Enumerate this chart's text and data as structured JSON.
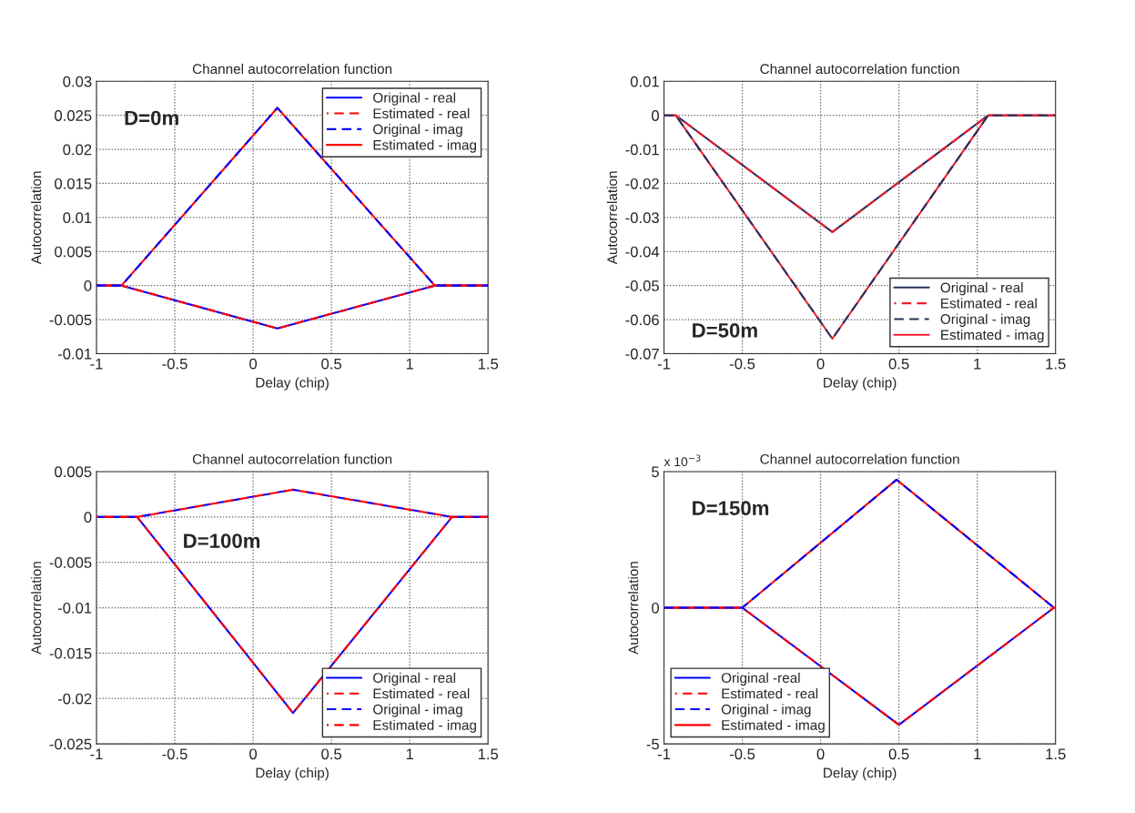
{
  "chart_data": [
    {
      "type": "line",
      "title": "Channel autocorrelation function",
      "xlabel": "Delay (chip)",
      "ylabel": "Autocorrelation",
      "annotations": [
        "D=0m"
      ],
      "xlim": [
        -1,
        1.5
      ],
      "xticks": [
        -1,
        -0.5,
        0,
        0.5,
        1,
        1.5
      ],
      "ylim": [
        -0.01,
        0.03
      ],
      "yticks": [
        -0.01,
        -0.005,
        0,
        0.005,
        0.01,
        0.015,
        0.02,
        0.025,
        0.03
      ],
      "grid": true,
      "legend": "top right",
      "series": [
        {
          "name": "Original - real",
          "color": "#0000ff",
          "line_style": "solid",
          "x": [
            -1,
            -0.84,
            0.155,
            1.16,
            1.5
          ],
          "values": [
            0,
            0,
            -0.0063,
            0,
            0
          ]
        },
        {
          "name": "Estimated - real",
          "color": "#ff0000",
          "line_style": "dashed",
          "x": [
            -1,
            -0.84,
            0.155,
            1.16,
            1.5
          ],
          "values": [
            0,
            0,
            -0.0063,
            0,
            0
          ]
        },
        {
          "name": "Original - imag",
          "color": "#0000ff",
          "line_style": "dashed",
          "x": [
            -1,
            -0.84,
            0.155,
            1.16,
            1.5
          ],
          "values": [
            0,
            0,
            0.0261,
            0,
            0
          ]
        },
        {
          "name": "Estimated - imag",
          "color": "#ff0000",
          "line_style": "solid",
          "x": [
            -1,
            -0.84,
            0.155,
            1.16,
            1.5
          ],
          "values": [
            0,
            0,
            0.0261,
            0,
            0
          ]
        }
      ]
    },
    {
      "type": "line",
      "title": "Channel autocorrelation function",
      "xlabel": "Delay (chip)",
      "ylabel": "Autocorrelation",
      "annotations": [
        "D=50m"
      ],
      "xlim": [
        -1,
        1.5
      ],
      "xticks": [
        -1,
        -0.5,
        0,
        0.5,
        1,
        1.5
      ],
      "ylim": [
        -0.07,
        0.01
      ],
      "yticks": [
        -0.07,
        -0.06,
        -0.05,
        -0.04,
        -0.03,
        -0.02,
        -0.01,
        0,
        0.01
      ],
      "grid": true,
      "legend": "bottom right",
      "series": [
        {
          "name": "Original - real",
          "color": "#27325e",
          "line_style": "solid",
          "x": [
            -1,
            -0.925,
            0.075,
            1.07,
            1.5
          ],
          "values": [
            0,
            0,
            -0.0343,
            0,
            0
          ]
        },
        {
          "name": "Estimated - real",
          "color": "#ee1c2e",
          "line_style": "dashed",
          "x": [
            -1,
            -0.925,
            0.075,
            1.07,
            1.5
          ],
          "values": [
            0,
            0,
            -0.0343,
            0,
            0
          ]
        },
        {
          "name": "Original - imag",
          "color": "#27325e",
          "line_style": "dashed",
          "x": [
            -1,
            -0.925,
            0.075,
            1.07,
            1.5
          ],
          "values": [
            0,
            0,
            -0.0656,
            0,
            0
          ]
        },
        {
          "name": "Estimated - imag",
          "color": "#ee1c2e",
          "line_style": "solid",
          "x": [
            -1,
            -0.925,
            0.075,
            1.07,
            1.5
          ],
          "values": [
            0,
            0,
            -0.0656,
            0,
            0
          ]
        }
      ]
    },
    {
      "type": "line",
      "title": "Channel autocorrelation function",
      "xlabel": "Delay (chip)",
      "ylabel": "Autocorrelation",
      "annotations": [
        "D=100m"
      ],
      "xlim": [
        -1,
        1.5
      ],
      "xticks": [
        -1,
        -0.5,
        0,
        0.5,
        1,
        1.5
      ],
      "ylim": [
        -0.025,
        0.005
      ],
      "yticks": [
        -0.025,
        -0.02,
        -0.015,
        -0.01,
        -0.005,
        0,
        0.005
      ],
      "grid": true,
      "legend": "bottom right",
      "series": [
        {
          "name": "Original - real",
          "color": "#0000ff",
          "line_style": "solid",
          "x": [
            -1,
            -0.74,
            0.255,
            1.27,
            1.5
          ],
          "values": [
            0,
            0,
            -0.0216,
            0,
            0
          ]
        },
        {
          "name": "Estimated - real",
          "color": "#ff0000",
          "line_style": "dashed",
          "x": [
            -1,
            -0.74,
            0.255,
            1.27,
            1.5
          ],
          "values": [
            0,
            0,
            -0.0216,
            0,
            0
          ]
        },
        {
          "name": "Original - imag",
          "color": "#0000ff",
          "line_style": "dashed",
          "x": [
            -1,
            -0.74,
            0.255,
            1.27,
            1.5
          ],
          "values": [
            0,
            0,
            0.003,
            0,
            0
          ]
        },
        {
          "name": "Estimated - imag",
          "color": "#ff0000",
          "line_style": "dashed",
          "x": [
            -1,
            -0.74,
            0.255,
            1.27,
            1.5
          ],
          "values": [
            0,
            0,
            0.003,
            0,
            0
          ]
        }
      ]
    },
    {
      "type": "line",
      "title": "Channel autocorrelation function",
      "xlabel": "Delay (chip)",
      "ylabel": "Autocorrelation",
      "annotations": [
        "D=150m",
        "x 10$^{−3}$"
      ],
      "xlim": [
        -1,
        1.5
      ],
      "xticks": [
        -1,
        -0.5,
        0,
        0.5,
        1,
        1.5
      ],
      "ylim": [
        -5,
        5
      ],
      "yticks": [
        -5,
        0,
        5
      ],
      "grid": true,
      "legend": "bottom left",
      "series": [
        {
          "name": "Original -real",
          "color": "#0000ff",
          "line_style": "solid",
          "x": [
            -1,
            -0.5,
            0.5,
            1.49,
            1.5
          ],
          "values": [
            0,
            0,
            -4.3,
            0,
            0
          ]
        },
        {
          "name": "Estimated - real",
          "color": "#ff0000",
          "line_style": "dashed",
          "x": [
            -1,
            -0.5,
            0.5,
            1.49,
            1.5
          ],
          "values": [
            0,
            0,
            -4.3,
            0,
            0
          ]
        },
        {
          "name": "Original - imag",
          "color": "#0000ff",
          "line_style": "dashed",
          "x": [
            -1,
            -0.5,
            0.485,
            1.49,
            1.5
          ],
          "values": [
            0,
            0,
            4.7,
            0,
            0
          ]
        },
        {
          "name": "Estimated - imag",
          "color": "#ff0000",
          "line_style": "solid",
          "x": [
            -1,
            -0.5,
            0.485,
            1.49,
            1.5
          ],
          "values": [
            0,
            0,
            4.7,
            0,
            0
          ]
        }
      ]
    }
  ]
}
